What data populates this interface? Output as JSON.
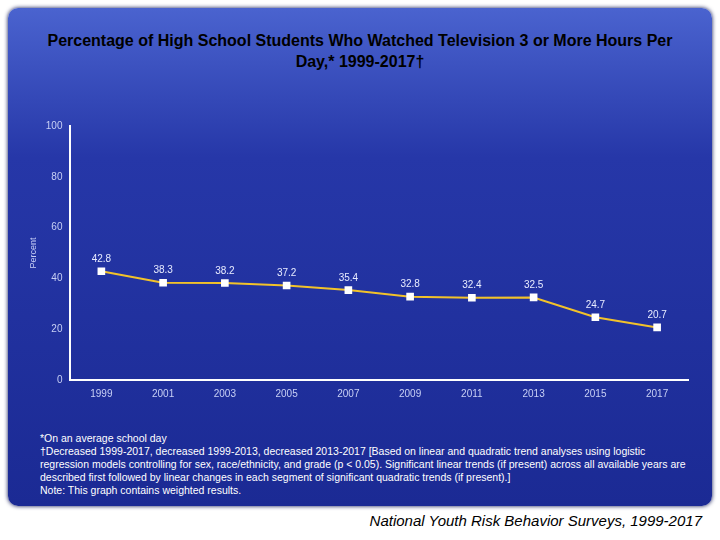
{
  "chart_data": {
    "type": "line",
    "title": "Percentage of High School Students Who Watched Television 3 or More Hours Per Day,* 1999-2017†",
    "y_label": "Percent",
    "categories": [
      "1999",
      "2001",
      "2003",
      "2005",
      "2007",
      "2009",
      "2011",
      "2013",
      "2015",
      "2017"
    ],
    "values": [
      42.8,
      38.3,
      38.2,
      37.2,
      35.4,
      32.8,
      32.4,
      32.5,
      24.7,
      20.7
    ],
    "color": "#f2c22a",
    "marker": "square",
    "data_labels": true,
    "grid": false,
    "ylim": [
      0,
      100
    ],
    "yticks": [
      0,
      20,
      40,
      60,
      80,
      100
    ],
    "notes": [
      "*On an average school day",
      "†Decreased 1999-2017, decreased 1999-2013, decreased 2013-2017 [Based on linear and quadratic trend analyses using logistic regression models controlling for sex, race/ethnicity, and grade (p < 0.05). Significant linear trends (if present) across all available years are described first followed by linear changes in each segment of significant quadratic trends (if present).]",
      "Note: This graph contains weighted results."
    ],
    "source": "National Youth Risk Behavior Surveys, 1999-2017"
  }
}
